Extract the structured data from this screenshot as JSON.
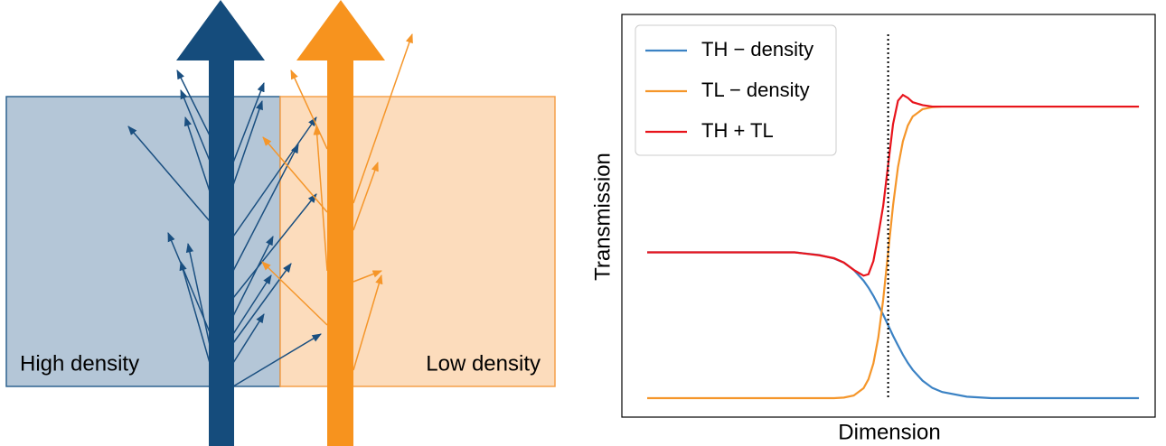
{
  "diagram": {
    "labels": [
      "High density",
      "Low density"
    ]
  },
  "chart_data": {
    "type": "line",
    "x_label": "Dimension",
    "y_label": "Transmission",
    "x": [
      0,
      1,
      2,
      3,
      3.5,
      3.8,
      4.0,
      4.2,
      4.4,
      4.5,
      4.6,
      4.7,
      4.8,
      4.9,
      5.0,
      5.1,
      5.2,
      5.3,
      5.4,
      5.6,
      5.8,
      6.0,
      6.5,
      7,
      8,
      9,
      10
    ],
    "series": [
      {
        "name": "TH − density",
        "color": "#3b82c4",
        "values": [
          0.5,
          0.5,
          0.5,
          0.5,
          0.491,
          0.479,
          0.465,
          0.44,
          0.403,
          0.379,
          0.351,
          0.319,
          0.286,
          0.25,
          0.214,
          0.181,
          0.149,
          0.121,
          0.097,
          0.06,
          0.035,
          0.021,
          0.005,
          0,
          0,
          0,
          0
        ]
      },
      {
        "name": "TL − density",
        "color": "#f5962a",
        "values": [
          0,
          0,
          0,
          0,
          0,
          0,
          0.002,
          0.009,
          0.034,
          0.065,
          0.119,
          0.208,
          0.339,
          0.5,
          0.661,
          0.792,
          0.881,
          0.935,
          0.966,
          0.991,
          0.998,
          1,
          1,
          1,
          1,
          1,
          1
        ]
      },
      {
        "name": "TH + TL",
        "color": "#e8141c",
        "values": [
          0.5,
          0.5,
          0.5,
          0.5,
          0.49,
          0.48,
          0.465,
          0.44,
          0.42,
          0.425,
          0.47,
          0.56,
          0.66,
          0.8,
          0.94,
          1.02,
          1.04,
          1.03,
          1.015,
          1.005,
          1.0,
          1.0,
          1.0,
          1.0,
          1.0,
          1.0,
          1.0
        ]
      }
    ],
    "vline": 4.9,
    "xlim": [
      -0.515,
      10.33
    ],
    "ylim": [
      -0.065,
      1.316
    ],
    "legend": "upper-left"
  }
}
